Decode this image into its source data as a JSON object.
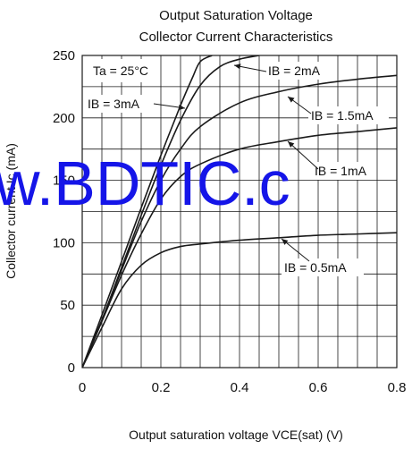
{
  "chart_data": {
    "type": "line",
    "title": [
      "Output Saturation Voltage",
      "Collector Current Characteristics"
    ],
    "xlabel": "Output saturation voltage  VCE(sat) (V)",
    "ylabel": "Collector current  Ic (mA)",
    "xlim": [
      0,
      0.8
    ],
    "ylim": [
      0,
      250
    ],
    "xticks": [
      0,
      0.2,
      0.4,
      0.6,
      0.8
    ],
    "xtick_labels": [
      "0",
      "0.2",
      "0.4",
      "0.6",
      "0.8"
    ],
    "yticks": [
      0,
      50,
      100,
      150,
      200,
      250
    ],
    "ytick_labels": [
      "0",
      "50",
      "100",
      "150",
      "200",
      "250"
    ],
    "grid": true,
    "condition_label": "Ta = 25°C",
    "series": [
      {
        "name": "IB = 3mA",
        "x": [
          0,
          0.05,
          0.1,
          0.15,
          0.2,
          0.25,
          0.28,
          0.3,
          0.33
        ],
        "y": [
          0,
          42,
          85,
          128,
          170,
          210,
          232,
          245,
          250
        ]
      },
      {
        "name": "IB = 2mA",
        "x": [
          0,
          0.05,
          0.1,
          0.15,
          0.2,
          0.25,
          0.3,
          0.35,
          0.4,
          0.45
        ],
        "y": [
          0,
          38,
          80,
          122,
          162,
          198,
          226,
          241,
          247,
          250
        ]
      },
      {
        "name": "IB = 1.5mA",
        "x": [
          0,
          0.05,
          0.1,
          0.15,
          0.2,
          0.25,
          0.3,
          0.4,
          0.5,
          0.6,
          0.7,
          0.8
        ],
        "y": [
          0,
          38,
          78,
          117,
          150,
          175,
          193,
          212,
          221,
          227,
          231,
          234
        ]
      },
      {
        "name": "IB = 1mA",
        "x": [
          0,
          0.05,
          0.1,
          0.15,
          0.2,
          0.25,
          0.3,
          0.4,
          0.5,
          0.6,
          0.7,
          0.8
        ],
        "y": [
          0,
          37,
          74,
          107,
          135,
          153,
          163,
          175,
          181,
          186,
          189,
          192
        ]
      },
      {
        "name": "IB = 0.5mA",
        "x": [
          0,
          0.05,
          0.1,
          0.15,
          0.2,
          0.25,
          0.3,
          0.4,
          0.5,
          0.6,
          0.7,
          0.8
        ],
        "y": [
          0,
          32,
          63,
          82,
          92,
          97,
          99,
          102,
          104,
          106,
          107,
          108
        ]
      }
    ],
    "annotations": [
      {
        "text": "IB = 3mA",
        "series": 0
      },
      {
        "text": "IB = 2mA",
        "series": 1
      },
      {
        "text": "IB = 1.5mA",
        "series": 2
      },
      {
        "text": "IB = 1mA",
        "series": 3
      },
      {
        "text": "IB = 0.5mA",
        "series": 4
      }
    ]
  },
  "watermark": "w.BDTIC.c",
  "colors": {
    "curve": "#1a1a1a",
    "grid": "#1a1a1a",
    "watermark": "#1515e8"
  }
}
